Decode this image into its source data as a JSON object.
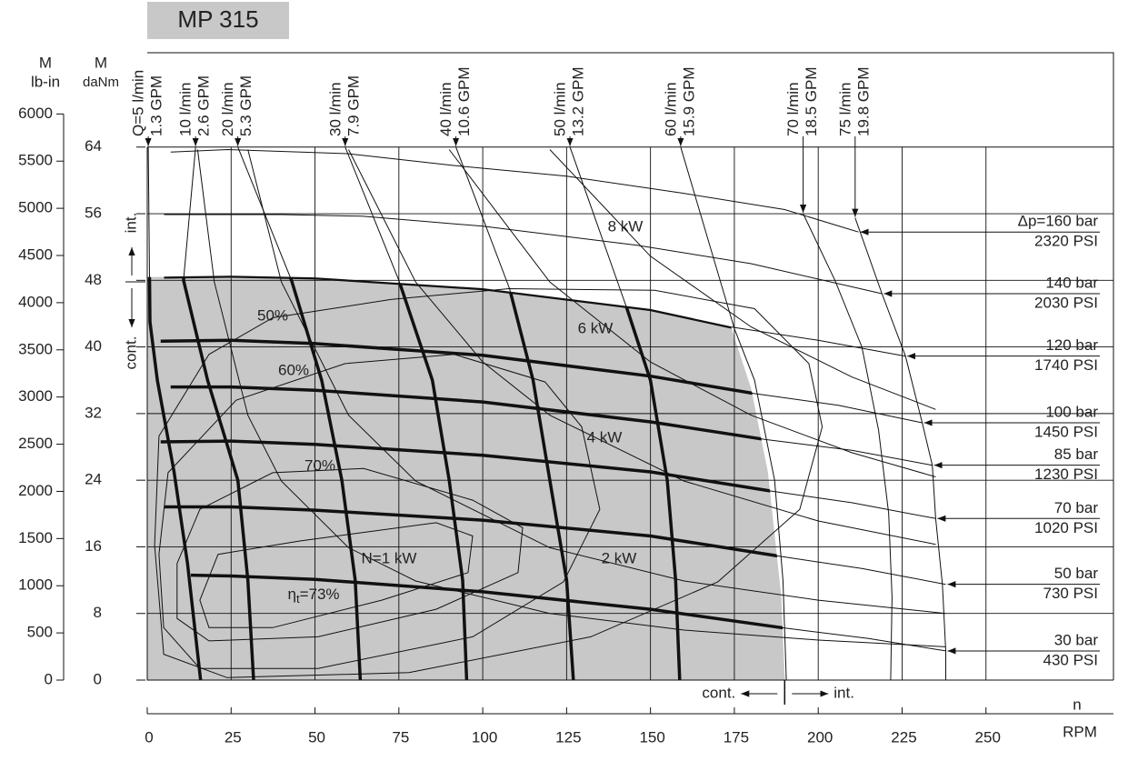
{
  "chart_data": {
    "type": "performance",
    "title": "MP 315",
    "x_label": "n",
    "x_unit": "RPM",
    "y_label": "M",
    "y_unit": "daNm",
    "y2_label": "M",
    "y2_unit": "lb-in",
    "xlim": [
      0,
      288
    ],
    "xticks": [
      0,
      25,
      50,
      75,
      100,
      125,
      150,
      175,
      200,
      225,
      250
    ],
    "ylim": [
      0,
      75
    ],
    "yticks": [
      0,
      8,
      16,
      24,
      32,
      40,
      48,
      56,
      64
    ],
    "y2lim": [
      0,
      6620
    ],
    "y2ticks": [
      0,
      500,
      1000,
      1500,
      2000,
      2500,
      3000,
      3500,
      4000,
      4500,
      5000,
      5500,
      6000
    ],
    "grid": true,
    "int_label": "int.",
    "cont_label": "cont.",
    "cont_limit_x": 190,
    "region_color": "#c8c8c8",
    "cont_region": {
      "x": [
        0,
        0,
        25,
        50,
        100,
        150,
        174,
        180,
        185,
        189,
        190
      ],
      "values": [
        0,
        48.4,
        48.5,
        48.3,
        47,
        44.5,
        42.4,
        35,
        25,
        10,
        0
      ]
    },
    "pressure_curves": [
      {
        "name": "Δp=160 bar",
        "psi": "2320 PSI",
        "x": [
          7,
          24,
          60,
          91,
          125,
          159,
          190,
          212
        ],
        "values": [
          63.4,
          63.7,
          63.2,
          61.8,
          60.5,
          58.5,
          56.5,
          53.8
        ]
      },
      {
        "name": "140 bar",
        "psi": "2030 PSI",
        "x": [
          5,
          40,
          64,
          100,
          146,
          180,
          219
        ],
        "values": [
          55.9,
          55.9,
          55.7,
          54.5,
          52.2,
          50,
          46.4
        ]
      },
      {
        "name": "120 bar",
        "psi": "1740 PSI",
        "x": [
          5,
          25,
          50,
          100,
          150,
          174,
          200,
          226
        ],
        "values": [
          48.4,
          48.5,
          48.3,
          47,
          44.5,
          42.4,
          40.8,
          38.9
        ]
      },
      {
        "name": "100 bar",
        "psi": "1450 PSI",
        "x": [
          4,
          25,
          50,
          100,
          150,
          181,
          206,
          231
        ],
        "values": [
          40.7,
          40.8,
          40.4,
          39,
          36.5,
          34.4,
          33,
          30.9
        ]
      },
      {
        "name": "85 bar",
        "psi": "1230 PSI",
        "x": [
          7,
          25,
          50,
          100,
          150,
          184,
          210,
          234
        ],
        "values": [
          35.2,
          35.2,
          34.8,
          33.4,
          31,
          28.9,
          27.6,
          25.8
        ]
      },
      {
        "name": "70 bar",
        "psi": "1020 PSI",
        "x": [
          4,
          25,
          50,
          100,
          150,
          186,
          210,
          235
        ],
        "values": [
          28.6,
          28.7,
          28.3,
          27,
          25,
          22.7,
          21.3,
          19.4
        ]
      },
      {
        "name": "50 bar",
        "psi": "730 PSI",
        "x": [
          5,
          25,
          50,
          100,
          150,
          188,
          213,
          238
        ],
        "values": [
          20.8,
          20.8,
          20.4,
          19.2,
          17.3,
          14.9,
          13.4,
          11.5
        ]
      },
      {
        "name": "30 bar",
        "psi": "430 PSI",
        "x": [
          13,
          25,
          50,
          100,
          150,
          189,
          215,
          238
        ],
        "values": [
          12.6,
          12.5,
          12.1,
          10.6,
          8.5,
          6.3,
          5,
          3.5
        ]
      }
    ],
    "flow_curves": [
      {
        "name": "Q=5 l/min",
        "gpm": "1.3 GPM",
        "x": [
          0.3,
          0.8,
          3,
          8,
          12,
          15.9
        ],
        "values": [
          64,
          43,
          36,
          25,
          14,
          0
        ]
      },
      {
        "name": "10 l/min",
        "gpm": "2.6 GPM",
        "x": [
          14.4,
          10.8,
          18,
          27,
          30,
          31.7
        ],
        "values": [
          64,
          48,
          36,
          24,
          12,
          0
        ]
      },
      {
        "name": "20 l/min",
        "gpm": "5.3 GPM",
        "x": [
          27,
          43,
          52,
          58,
          62,
          63.5
        ],
        "values": [
          64,
          48,
          36,
          24,
          12,
          0
        ]
      },
      {
        "name": "30 l/min",
        "gpm": "7.9 GPM",
        "x": [
          59,
          75,
          85,
          90,
          94,
          95.2
        ],
        "values": [
          64,
          48,
          36,
          24,
          12,
          0
        ]
      },
      {
        "name": "40 l/min",
        "gpm": "10.6 GPM",
        "x": [
          92,
          108,
          115,
          120,
          125,
          127
        ],
        "values": [
          64,
          47,
          36,
          24,
          12,
          0
        ]
      },
      {
        "name": "50 l/min",
        "gpm": "13.2 GPM",
        "x": [
          126,
          143,
          150,
          155,
          157.5,
          158.7
        ],
        "values": [
          64,
          44.6,
          36,
          24,
          12,
          0
        ]
      },
      {
        "name": "60 l/min",
        "gpm": "15.9 GPM",
        "x": [
          159,
          175,
          181,
          187,
          189.5,
          190.5
        ],
        "values": [
          64,
          42.2,
          36,
          24,
          12,
          0
        ]
      },
      {
        "name": "70 l/min",
        "gpm": "18.5 GPM",
        "x": [
          195.5,
          205,
          213,
          218,
          221,
          222,
          221.6
        ],
        "values": [
          56,
          48,
          40,
          30,
          20,
          10,
          0
        ]
      },
      {
        "name": "75 l/min",
        "gpm": "19.8 GPM",
        "x": [
          211,
          219,
          226,
          231,
          234,
          235,
          237,
          238,
          238
        ],
        "values": [
          55.5,
          46.4,
          38.9,
          30.9,
          25.8,
          19.4,
          11.5,
          3.5,
          0
        ]
      }
    ],
    "power_curves": [
      {
        "label": "8 kW",
        "x": [
          120,
          150,
          180,
          210,
          235
        ],
        "values": [
          63.7,
          50.9,
          42.4,
          36.4,
          32.5
        ]
      },
      {
        "label": "6 kW",
        "x": [
          90,
          120,
          150,
          180,
          210,
          235
        ],
        "values": [
          63.7,
          47.8,
          38.2,
          31.8,
          27.3,
          24.4
        ]
      },
      {
        "label": "4 kW",
        "x": [
          60,
          80,
          100,
          120,
          160,
          200,
          235
        ],
        "values": [
          63.7,
          47.8,
          38.2,
          31.8,
          23.9,
          19.1,
          16.3
        ]
      },
      {
        "label": "2 kW",
        "x": [
          30,
          40,
          60,
          80,
          120,
          160,
          200,
          238
        ],
        "values": [
          63.7,
          47.8,
          31.8,
          23.9,
          15.9,
          11.9,
          9.6,
          8
        ]
      },
      {
        "label": "N=1 kW",
        "x": [
          15,
          20,
          30,
          40,
          60,
          80,
          120,
          160,
          200,
          238
        ],
        "values": [
          63.7,
          47.8,
          31.8,
          23.9,
          15.9,
          11.9,
          8,
          6,
          4.8,
          4
        ]
      }
    ],
    "efficiency_curves": [
      {
        "label": "50%",
        "x": [
          2.2,
          3.5,
          18.4,
          37.4,
          72.6,
          107.8,
          151.2,
          181,
          197.2,
          201.2,
          194.5,
          170.1,
          132.2,
          78,
          23.8,
          4.9
        ],
        "values": [
          16.2,
          29.3,
          39.1,
          43.5,
          45.7,
          47,
          46.8,
          44.6,
          38,
          30.4,
          20.5,
          11.8,
          5.2,
          0.9,
          0.3,
          3.1
        ]
      },
      {
        "label": "60%",
        "x": [
          3.5,
          6.2,
          26.5,
          59,
          91.5,
          118.6,
          129.5,
          134.9,
          124.1,
          97,
          50.9,
          15.7,
          4.9
        ],
        "values": [
          15.1,
          24.9,
          33.6,
          38,
          39.1,
          35.8,
          30.4,
          20.5,
          11.8,
          5.2,
          1.4,
          1.4,
          6.3
        ]
      },
      {
        "label": "70%",
        "x": [
          8.9,
          15.7,
          37.4,
          64.5,
          97,
          111.9,
          110.5,
          86.1,
          50.9,
          18.4,
          8.9
        ],
        "values": [
          14,
          20.5,
          24.9,
          25.4,
          21.6,
          18.3,
          12.9,
          8.5,
          5.2,
          4.7,
          7.4
        ]
      },
      {
        "label": "=73%",
        "symbol": "η",
        "subscript": "t",
        "x": [
          15.7,
          21.1,
          45.5,
          86.1,
          97,
          95.6,
          69.9,
          37.4,
          18.4
        ],
        "values": [
          9.6,
          15.1,
          16.7,
          18.9,
          17.3,
          12.9,
          9.6,
          6.3,
          6.3
        ]
      }
    ]
  }
}
